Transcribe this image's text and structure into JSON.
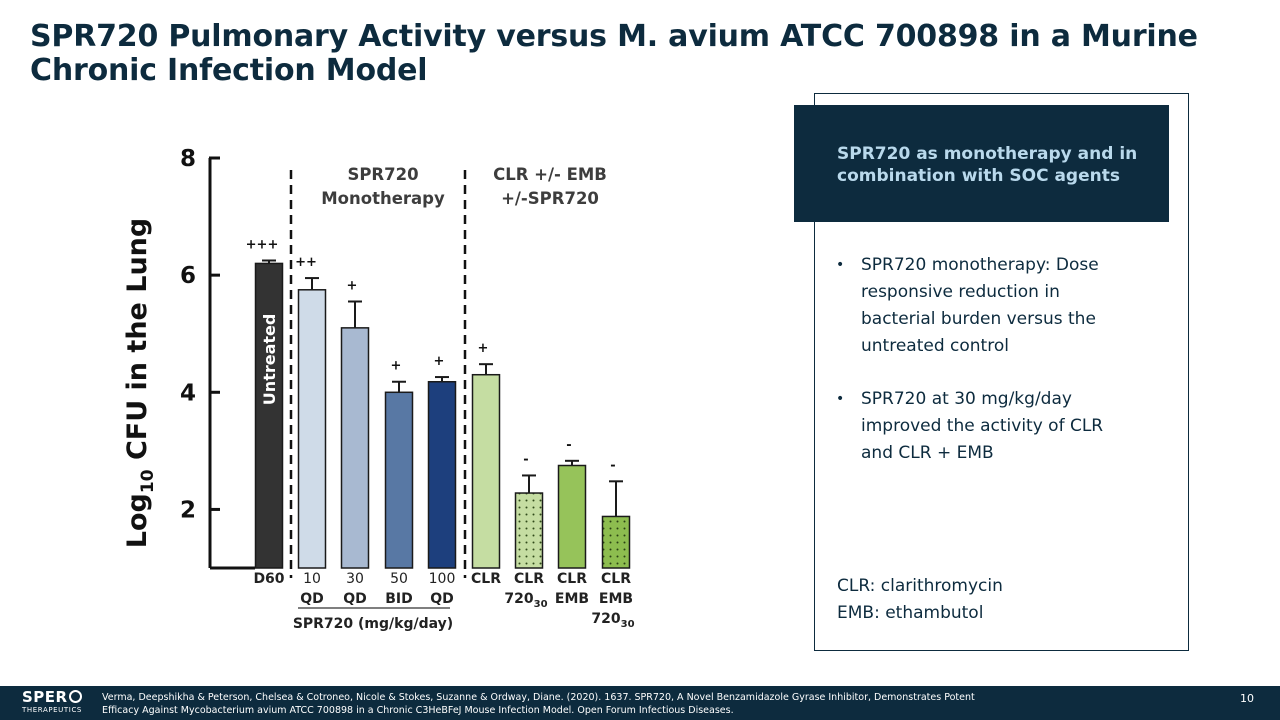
{
  "title": "SPR720 Pulmonary Activity versus M. avium ATCC 700898 in a Murine Chronic Infection Model",
  "panel": {
    "header": "SPR720 as monotherapy and in combination with SOC agents",
    "bullet_marker": "•",
    "bullets": [
      "SPR720 monotherapy: Dose responsive reduction in bacterial burden versus the untreated control",
      "SPR720 at 30 mg/kg/day improved the activity of CLR and CLR + EMB"
    ],
    "abbreviations": [
      "CLR: clarithromycin",
      "EMB: ethambutol"
    ]
  },
  "footer": {
    "logo_name": "SPER",
    "logo_sub": "THERAPEUTICS",
    "citation": "Verma, Deepshikha & Peterson, Chelsea & Cotroneo, Nicole & Stokes, Suzanne & Ordway, Diane. (2020). 1637. SPR720, A Novel Benzamidazole Gyrase Inhibitor, Demonstrates Potent Efficacy Against Mycobacterium avium ATCC 700898 in a Chronic C3HeBFeJ Mouse Infection Model. Open Forum Infectious Diseases.",
    "page": "10"
  },
  "chart_data": {
    "type": "bar",
    "ylabel_main": "Log",
    "ylabel_sub": "10",
    "ylabel_rest": "CFU in the Lung",
    "ylim": [
      1,
      8
    ],
    "yticks": [
      2,
      4,
      6,
      8
    ],
    "group_labels": [
      "SPR720\nMonotherapy",
      "CLR +/- EMB\n+/-SPR720"
    ],
    "xgroup_label": "SPR720 (mg/kg/day)",
    "bars": [
      {
        "label": [
          "D60"
        ],
        "value": 6.2,
        "error": 0.05,
        "color": "#333333",
        "pattern": "solid",
        "annotation": "+++",
        "inner_label": "Untreated"
      },
      {
        "label": [
          "10",
          "QD"
        ],
        "value": 5.75,
        "error": 0.2,
        "color": "#cfdbe8",
        "pattern": "solid",
        "annotation": "++"
      },
      {
        "label": [
          "30",
          "QD"
        ],
        "value": 5.1,
        "error": 0.45,
        "color": "#a8b9d1",
        "pattern": "solid",
        "annotation": "+"
      },
      {
        "label": [
          "50",
          "BID"
        ],
        "value": 4.0,
        "error": 0.18,
        "color": "#5878a4",
        "pattern": "solid",
        "annotation": "+"
      },
      {
        "label": [
          "100",
          "QD"
        ],
        "value": 4.18,
        "error": 0.08,
        "color": "#1d3f7d",
        "pattern": "solid",
        "annotation": "+"
      },
      {
        "label": [
          "CLR"
        ],
        "value": 4.3,
        "error": 0.18,
        "color": "#c5dda2",
        "pattern": "solid",
        "annotation": "+"
      },
      {
        "label": [
          "CLR",
          "720",
          "30"
        ],
        "value": 2.28,
        "error": 0.3,
        "color": "#c5dda2",
        "pattern": "dots",
        "annotation": "-"
      },
      {
        "label": [
          "CLR",
          "EMB"
        ],
        "value": 2.75,
        "error": 0.08,
        "color": "#96c35a",
        "pattern": "solid",
        "annotation": "-"
      },
      {
        "label": [
          "CLR",
          "EMB",
          "720",
          "30"
        ],
        "value": 1.88,
        "error": 0.6,
        "color": "#8dbd4f",
        "pattern": "dots",
        "annotation": "-"
      }
    ]
  }
}
